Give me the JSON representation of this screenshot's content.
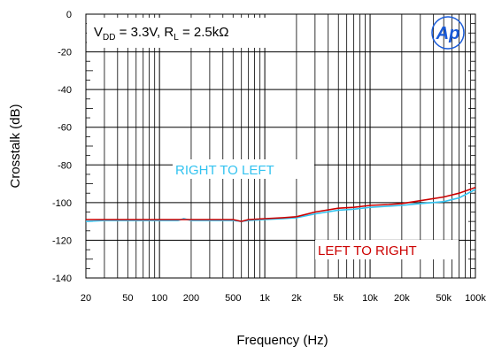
{
  "chart_data": {
    "type": "line",
    "conditions": {
      "vdd_prefix": "V",
      "vdd_sub": "DD",
      "vdd_value": " = 3.3V, ",
      "rl_prefix": "R",
      "rl_sub": "L",
      "rl_value": " = 2.5kΩ"
    },
    "xlabel": "Frequency (Hz)",
    "ylabel": "Crosstalk (dB)",
    "xscale": "log",
    "xlim": [
      20,
      100000
    ],
    "ylim": [
      -140,
      0
    ],
    "grid": true,
    "x_ticks": [
      {
        "value": 20,
        "label": "20"
      },
      {
        "value": 50,
        "label": "50"
      },
      {
        "value": 100,
        "label": "100"
      },
      {
        "value": 200,
        "label": "200"
      },
      {
        "value": 500,
        "label": "500"
      },
      {
        "value": 1000,
        "label": "1k"
      },
      {
        "value": 2000,
        "label": "2k"
      },
      {
        "value": 5000,
        "label": "5k"
      },
      {
        "value": 10000,
        "label": "10k"
      },
      {
        "value": 20000,
        "label": "20k"
      },
      {
        "value": 50000,
        "label": "50k"
      },
      {
        "value": 100000,
        "label": "100k"
      }
    ],
    "y_ticks": [
      0,
      -20,
      -40,
      -60,
      -80,
      -100,
      -120,
      -140
    ],
    "series": [
      {
        "name": "RIGHT TO LEFT",
        "color": "#33c3f0",
        "points": [
          [
            20,
            -110
          ],
          [
            30,
            -109.5
          ],
          [
            50,
            -109.5
          ],
          [
            100,
            -109.5
          ],
          [
            150,
            -109.5
          ],
          [
            170,
            -108.5
          ],
          [
            200,
            -109.5
          ],
          [
            300,
            -109.5
          ],
          [
            500,
            -109.5
          ],
          [
            600,
            -110
          ],
          [
            700,
            -109.5
          ],
          [
            1000,
            -109
          ],
          [
            1500,
            -108.5
          ],
          [
            2000,
            -108
          ],
          [
            3000,
            -106
          ],
          [
            5000,
            -104
          ],
          [
            7000,
            -103.5
          ],
          [
            10000,
            -102.5
          ],
          [
            20000,
            -101.5
          ],
          [
            30000,
            -100.5
          ],
          [
            50000,
            -99.5
          ],
          [
            70000,
            -97.5
          ],
          [
            100000,
            -93
          ]
        ]
      },
      {
        "name": "LEFT TO RIGHT",
        "color": "#cc0000",
        "points": [
          [
            20,
            -109
          ],
          [
            30,
            -109
          ],
          [
            50,
            -109
          ],
          [
            100,
            -109
          ],
          [
            200,
            -109
          ],
          [
            300,
            -109
          ],
          [
            500,
            -109
          ],
          [
            600,
            -110
          ],
          [
            700,
            -109
          ],
          [
            1000,
            -108.5
          ],
          [
            1500,
            -108
          ],
          [
            2000,
            -107.5
          ],
          [
            3000,
            -105
          ],
          [
            5000,
            -103
          ],
          [
            7000,
            -102.5
          ],
          [
            10000,
            -101.5
          ],
          [
            15000,
            -101
          ],
          [
            20000,
            -100.5
          ],
          [
            30000,
            -99
          ],
          [
            50000,
            -97
          ],
          [
            70000,
            -95
          ],
          [
            100000,
            -92
          ]
        ]
      }
    ],
    "annotations": [
      {
        "text": "RIGHT TO LEFT",
        "color": "#33c3f0"
      },
      {
        "text": "LEFT TO RIGHT",
        "color": "#cc0000"
      }
    ],
    "logo": {
      "text": "Ap",
      "color": "#1a5bd8"
    }
  }
}
